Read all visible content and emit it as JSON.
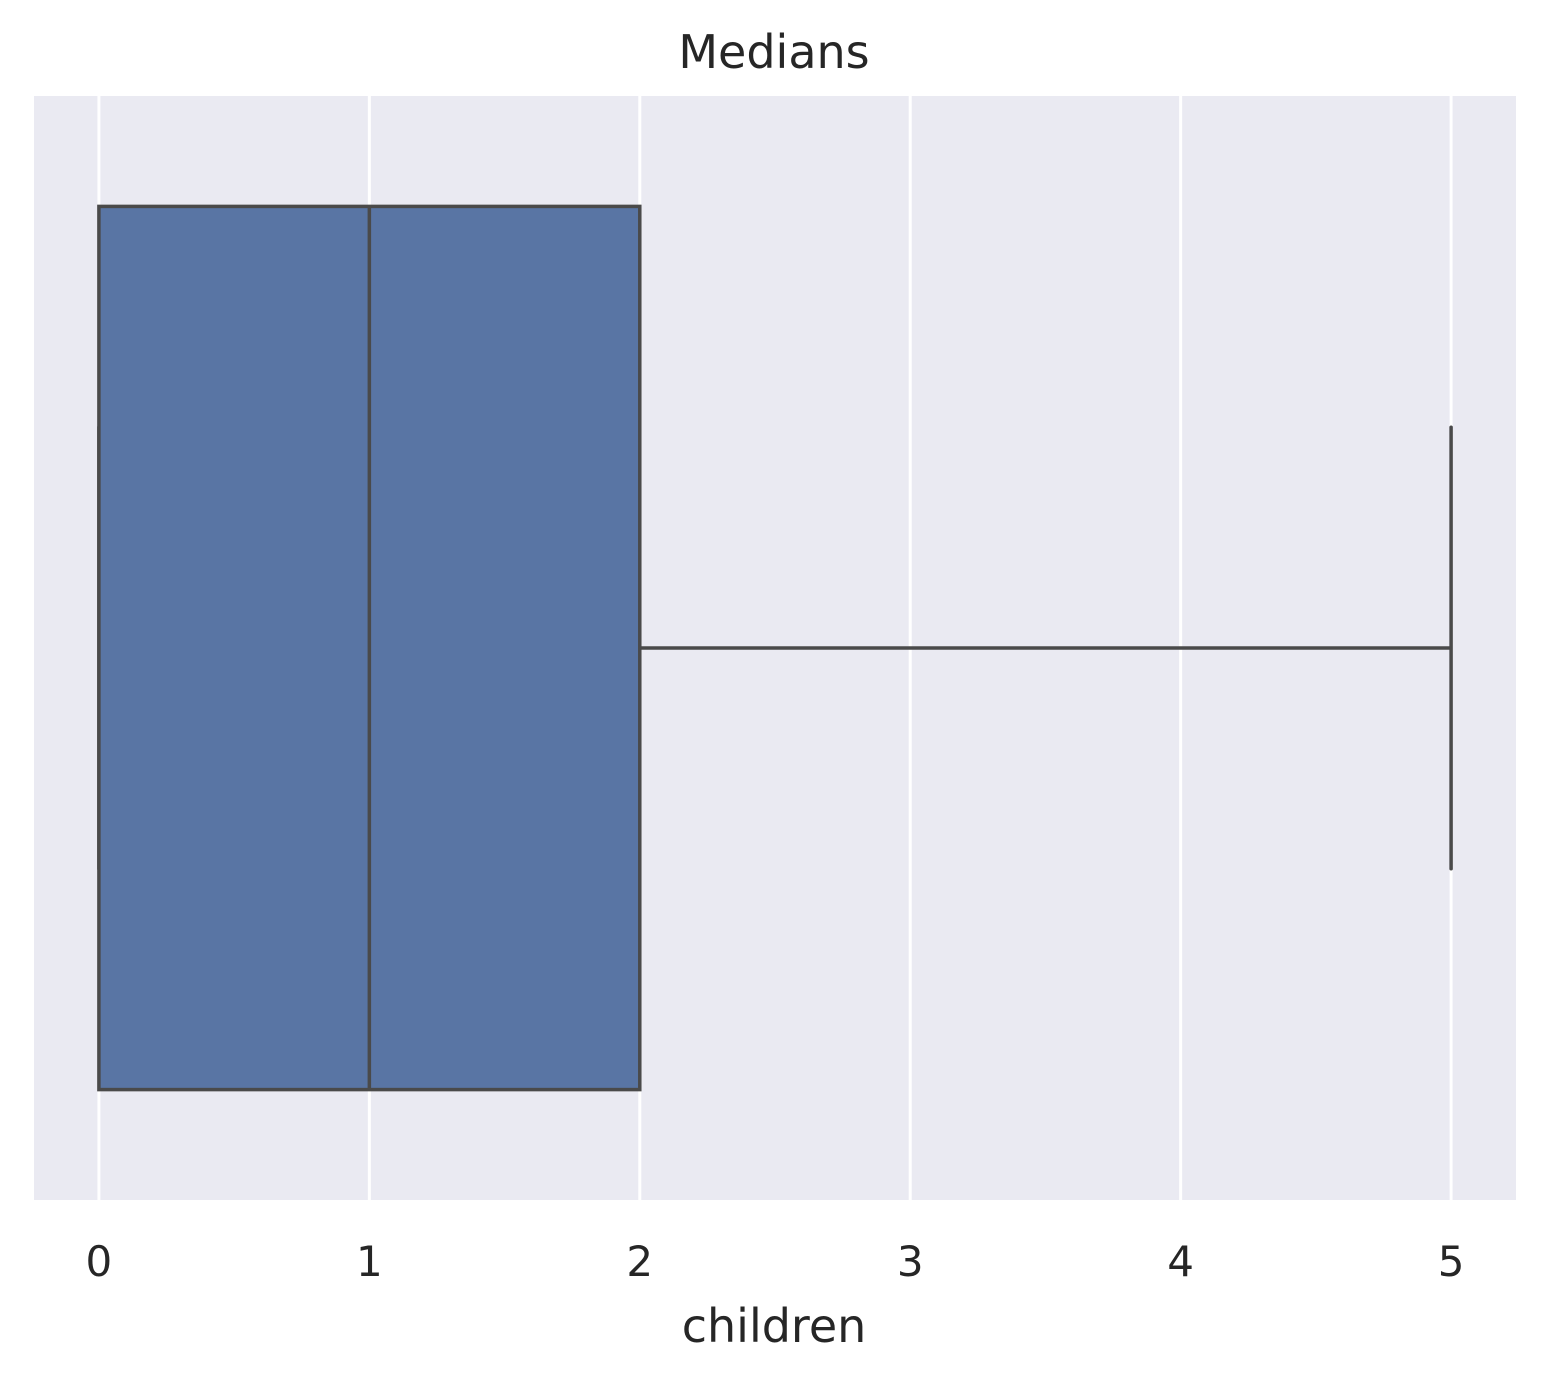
{
  "chart_data": {
    "type": "box",
    "orientation": "horizontal",
    "title": "Medians",
    "xlabel": "children",
    "ylabel": "",
    "xlim": [
      -0.24,
      5.24
    ],
    "x_ticks": [
      0,
      1,
      2,
      3,
      4,
      5
    ],
    "x_tick_labels": [
      "0",
      "1",
      "2",
      "3",
      "4",
      "5"
    ],
    "grid": true,
    "legend": "none",
    "boxes": [
      {
        "whisker_low": 0,
        "q1": 0,
        "median": 1,
        "q3": 2,
        "whisker_high": 5,
        "outliers": []
      }
    ],
    "colors": {
      "box_fill": "#5975a4",
      "box_edge": "#4a4a4a",
      "plot_background": "#eaeaf2",
      "grid": "#ffffff",
      "text": "#262626"
    }
  }
}
